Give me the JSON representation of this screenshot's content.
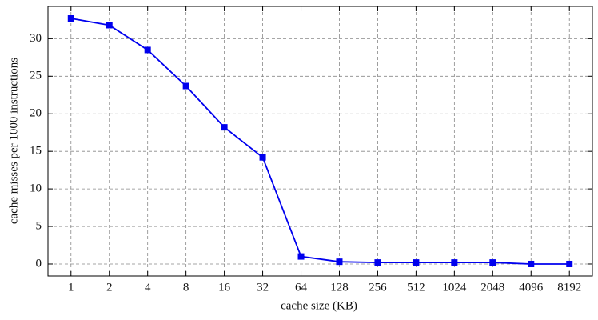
{
  "chart_data": {
    "type": "line",
    "x_label": "cache size (KB)",
    "y_label": "cache misses per 1000 instructions",
    "categories": [
      "1",
      "2",
      "4",
      "8",
      "16",
      "32",
      "64",
      "128",
      "256",
      "512",
      "1024",
      "2048",
      "4096",
      "8192"
    ],
    "series": [
      {
        "name": "cache misses",
        "color": "#0000ee",
        "values": [
          32.7,
          31.8,
          28.5,
          23.7,
          18.2,
          14.2,
          1.0,
          0.3,
          0.2,
          0.2,
          0.2,
          0.2,
          0.0,
          0.0
        ]
      }
    ],
    "ylim": [
      -1.6,
      34.3
    ],
    "yticks": [
      0,
      5,
      10,
      15,
      20,
      25,
      30
    ],
    "grid": true
  }
}
